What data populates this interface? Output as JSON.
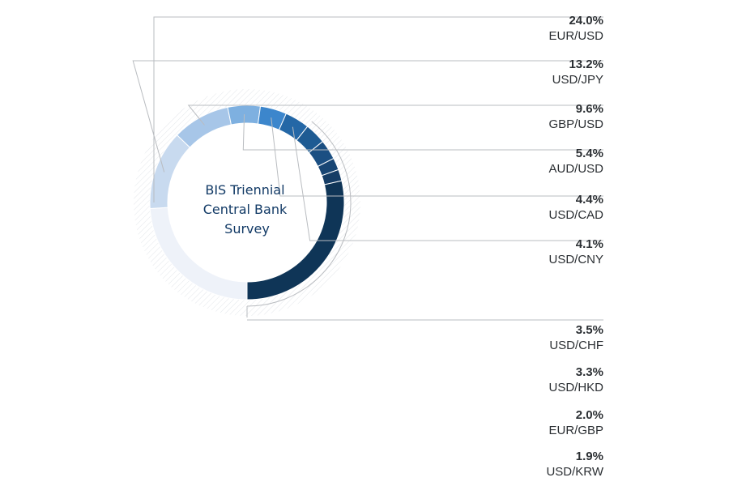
{
  "chart_data": {
    "type": "donut",
    "center_title_lines": [
      "BIS Triennial",
      "Central Bank",
      "Survey"
    ],
    "unit": "%",
    "segments": [
      {
        "label": "EUR/USD",
        "value": 24.0,
        "value_label": "24.0%",
        "color": "#eef2f9"
      },
      {
        "label": "USD/JPY",
        "value": 13.2,
        "value_label": "13.2%",
        "color": "#c8daef"
      },
      {
        "label": "GBP/USD",
        "value": 9.6,
        "value_label": "9.6%",
        "color": "#a7c6e8"
      },
      {
        "label": "AUD/USD",
        "value": 5.4,
        "value_label": "5.4%",
        "color": "#7eb0e0"
      },
      {
        "label": "USD/CAD",
        "value": 4.4,
        "value_label": "4.4%",
        "color": "#3c86cc"
      },
      {
        "label": "USD/CNY",
        "value": 4.1,
        "value_label": "4.1%",
        "color": "#2467a6"
      },
      {
        "label": "USD/CHF",
        "value": 3.5,
        "value_label": "3.5%",
        "color": "#1e5b93"
      },
      {
        "label": "USD/HKD",
        "value": 3.3,
        "value_label": "3.3%",
        "color": "#1b4f82"
      },
      {
        "label": "EUR/GBP",
        "value": 2.0,
        "value_label": "2.0%",
        "color": "#184674"
      },
      {
        "label": "USD/KRW",
        "value": 1.9,
        "value_label": "1.9%",
        "color": "#153d66"
      }
    ],
    "remainder_color": "#0f3557"
  }
}
